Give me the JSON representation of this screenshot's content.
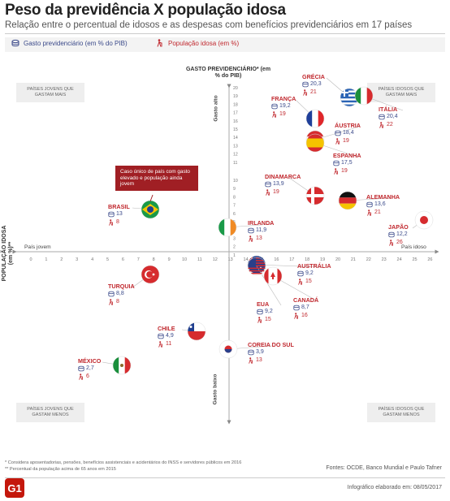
{
  "header": {
    "title": "Peso da previdência X população idosa",
    "subtitle": "Relação entre o percentual de idosos e as despesas com benefícios previdenciários em 17 países"
  },
  "legend": {
    "spending": "Gasto previdenciário (em % do PIB)",
    "population": "População idosa (em %)"
  },
  "corners": {
    "tl": "PAÍSES JOVENS QUE GASTAM MAIS",
    "tr": "PAÍSES IDOSOS QUE GASTAM MAIS",
    "bl": "PAÍSES JOVENS QUE GASTAM MENOS",
    "br": "PAÍSES IDOSOS QUE GASTAM MENOS"
  },
  "axis_labels": {
    "y_title": "GASTO PREVIDENCIÁRIO* (em % do PIB)",
    "x_title": "POPULAÇÃO IDOSA (em %)**",
    "y_high": "Gasto alto",
    "y_low": "Gasto baixo",
    "x_left": "País jovem",
    "x_right": "País idoso"
  },
  "callout": "Caso único de país com gasto elevado e população ainda jovem",
  "footnotes": [
    "* Considera aposentadorias, pensões, benefícios assistenciais e acidentários do INSS e servidores públicos em 2016",
    "** Percentual da população acima de 65 anos em 2015"
  ],
  "source": "Fontes: OCDE, Banco Mundial e Paulo Tafner",
  "date": "Infográfico elaborado em: 08/05/2017",
  "brand": "G1",
  "chart_data": {
    "type": "scatter",
    "title": "Peso da previdência X população idosa",
    "xlabel": "POPULAÇÃO IDOSA (em %)**",
    "ylabel": "GASTO PREVIDENCIÁRIO* (em % do PIB)",
    "x_ticks": [
      "0",
      "1",
      "2",
      "3",
      "4",
      "5",
      "6",
      "7",
      "8",
      "9",
      "10",
      "11",
      "12",
      "13",
      "14",
      "15",
      "16",
      "17",
      "18",
      "19",
      "20",
      "21",
      "22",
      "23",
      "24",
      "25",
      "26"
    ],
    "y_ticks": [
      "20",
      "19",
      "18",
      "17",
      "16",
      "15",
      "14",
      "13",
      "12",
      "11",
      "10",
      "9",
      "8",
      "7",
      "6",
      "5",
      "4",
      "3",
      "2",
      "1"
    ],
    "xlim": [
      0,
      26
    ],
    "points": [
      {
        "country": "GRÉCIA",
        "spending": "20,3",
        "population": "21",
        "x": 21,
        "y": 20.3,
        "flag": "greece"
      },
      {
        "country": "ITÁLIA",
        "spending": "20,4",
        "population": "22",
        "x": 22,
        "y": 20.4,
        "flag": "italy"
      },
      {
        "country": "FRANÇA",
        "spending": "19,2",
        "population": "19",
        "x": 19,
        "y": 19.2,
        "flag": "france"
      },
      {
        "country": "ÁUSTRIA",
        "spending": "18,4",
        "population": "19",
        "x": 19,
        "y": 18.4,
        "flag": "austria"
      },
      {
        "country": "ESPANHA",
        "spending": "17,5",
        "population": "19",
        "x": 19,
        "y": 17.5,
        "flag": "spain"
      },
      {
        "country": "DINAMARCA",
        "spending": "13,9",
        "population": "19",
        "x": 19,
        "y": 13.9,
        "flag": "denmark"
      },
      {
        "country": "ALEMANHA",
        "spending": "13,6",
        "population": "21",
        "x": 21,
        "y": 13.6,
        "flag": "germany"
      },
      {
        "country": "JAPÃO",
        "spending": "12,2",
        "population": "26",
        "x": 26,
        "y": 12.2,
        "flag": "japan"
      },
      {
        "country": "BRASIL",
        "spending": "13",
        "population": "8",
        "x": 8,
        "y": 13,
        "flag": "brazil"
      },
      {
        "country": "IRLANDA",
        "spending": "11,9",
        "population": "13",
        "x": 13,
        "y": 11.9,
        "flag": "ireland"
      },
      {
        "country": "AUSTRÁLIA",
        "spending": "9,2",
        "population": "15",
        "x": 15,
        "y": 9.2,
        "flag": "australia"
      },
      {
        "country": "EUA",
        "spending": "9,2",
        "population": "15",
        "x": 15,
        "y": 9.2,
        "flag": "usa"
      },
      {
        "country": "CANADÁ",
        "spending": "8,7",
        "population": "16",
        "x": 16,
        "y": 8.7,
        "flag": "canada"
      },
      {
        "country": "TURQUIA",
        "spending": "8,8",
        "population": "8",
        "x": 8,
        "y": 8.8,
        "flag": "turkey"
      },
      {
        "country": "CHILE",
        "spending": "4,9",
        "population": "11",
        "x": 11,
        "y": 4.9,
        "flag": "chile"
      },
      {
        "country": "COREIA DO SUL",
        "spending": "3,9",
        "population": "13",
        "x": 13,
        "y": 3.9,
        "flag": "korea"
      },
      {
        "country": "MÉXICO",
        "spending": "2,7",
        "population": "6",
        "x": 6,
        "y": 2.7,
        "flag": "mexico"
      }
    ]
  }
}
